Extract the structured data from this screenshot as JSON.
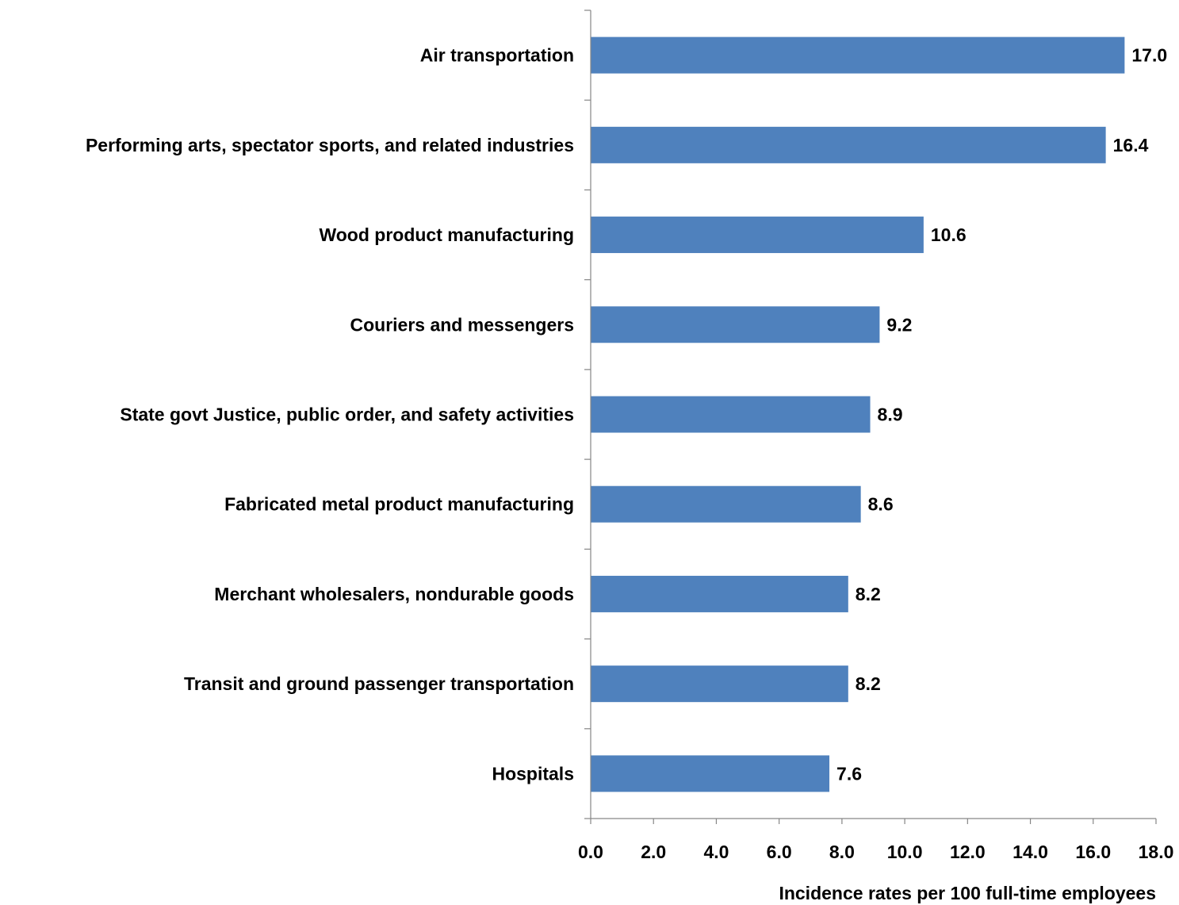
{
  "chart_data": {
    "type": "bar",
    "orientation": "horizontal",
    "categories": [
      "Air transportation",
      "Performing arts, spectator sports, and related industries",
      "Wood product manufacturing",
      "Couriers and messengers",
      "State govt Justice, public order, and safety activities",
      "Fabricated metal product manufacturing",
      "Merchant wholesalers, nondurable goods",
      "Transit and ground passenger transportation",
      "Hospitals"
    ],
    "values": [
      17.0,
      16.4,
      10.6,
      9.2,
      8.9,
      8.6,
      8.2,
      8.2,
      7.6
    ],
    "value_labels": [
      "17.0",
      "16.4",
      "10.6",
      "9.2",
      "8.9",
      "8.6",
      "8.2",
      "8.2",
      "7.6"
    ],
    "xlabel": "Incidence rates per 100 full-time employees",
    "xlim": [
      0,
      18
    ],
    "xticks": [
      "0.0",
      "2.0",
      "4.0",
      "6.0",
      "8.0",
      "10.0",
      "12.0",
      "14.0",
      "16.0",
      "18.0"
    ],
    "grid": false,
    "legend": "none",
    "colors": {
      "bar": "#4F81BD",
      "axis": "#868686"
    }
  }
}
